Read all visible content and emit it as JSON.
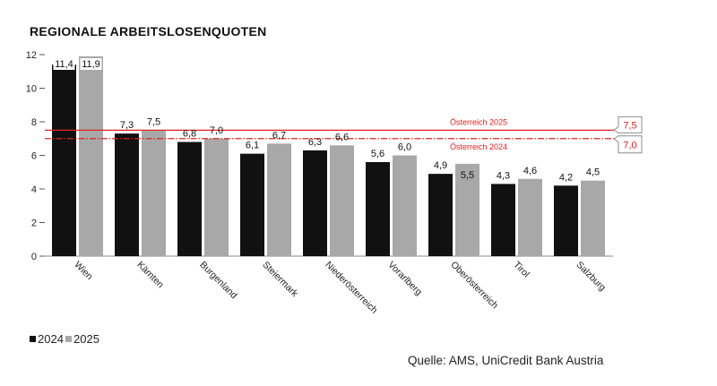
{
  "chart_data": {
    "type": "bar",
    "title": "REGIONALE ARBEITSLOSENQUOTEN",
    "categories": [
      "Wien",
      "Kärnten",
      "Burgenland",
      "Steiermark",
      "Niederösterreich",
      "Vorarlberg",
      "Oberösterreich",
      "Tirol",
      "Salzburg"
    ],
    "series": [
      {
        "name": "2024",
        "color": "#111111",
        "values": [
          11.4,
          7.3,
          6.8,
          6.1,
          6.3,
          5.6,
          4.9,
          4.3,
          4.2
        ],
        "labels": [
          "11,4",
          "7,3",
          "6,8",
          "6,1",
          "6,3",
          "5,6",
          "4,9",
          "4,3",
          "4,2"
        ]
      },
      {
        "name": "2025",
        "color": "#a8a8a8",
        "values": [
          11.9,
          7.5,
          7.0,
          6.7,
          6.6,
          6.0,
          5.5,
          4.6,
          4.5
        ],
        "labels": [
          "11,9",
          "7,5",
          "7,0",
          "6,7",
          "6,6",
          "6,0",
          "5,5",
          "4,6",
          "4,5"
        ]
      }
    ],
    "ylim": [
      0,
      12
    ],
    "yticks": [
      0,
      2,
      4,
      6,
      8,
      10,
      12
    ],
    "grid": false,
    "legend": {
      "position": "bottom-left"
    },
    "reference_lines": [
      {
        "label": "Österreich 2025",
        "value": 7.5,
        "value_label": "7,5",
        "style": "solid",
        "color": "#e02020"
      },
      {
        "label": "Österreich 2024",
        "value": 7.0,
        "value_label": "7,0",
        "style": "dash-dot",
        "color": "#e02020"
      }
    ]
  },
  "source": "Quelle: AMS, UniCredit Bank Austria"
}
